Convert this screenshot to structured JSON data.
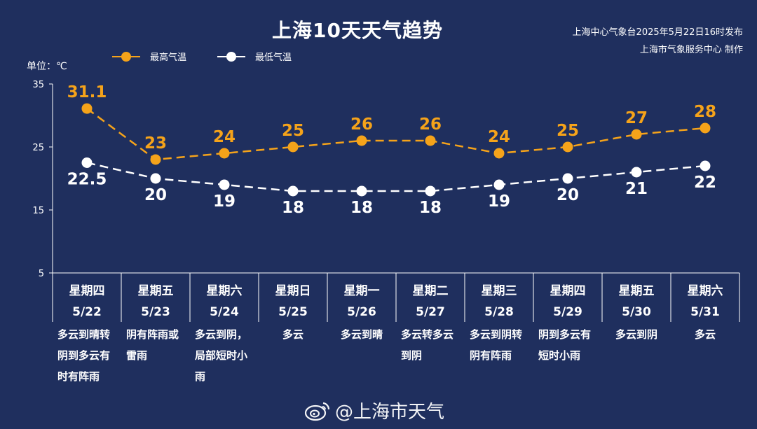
{
  "title": "上海10天天气趋势",
  "issuer": {
    "line1": "上海中心气象台2025年5月22日16时发布",
    "line2": "上海市气象服务中心 制作"
  },
  "legend": {
    "high_label": "最高气温",
    "low_label": "最低气温"
  },
  "unit_label": "单位：℃",
  "watermark": "@上海市天气",
  "colors": {
    "background": "#1f2f5e",
    "high": "#f5a31a",
    "low": "#ffffff"
  },
  "chart_data": {
    "type": "line",
    "ylim": [
      5,
      35
    ],
    "yticks": [
      5,
      15,
      25,
      35
    ],
    "grid": false,
    "legend_position": "top-left",
    "categories": [
      "5/22",
      "5/23",
      "5/24",
      "5/25",
      "5/26",
      "5/27",
      "5/28",
      "5/29",
      "5/30",
      "5/31"
    ],
    "weekdays": [
      "星期四",
      "星期五",
      "星期六",
      "星期日",
      "星期一",
      "星期二",
      "星期三",
      "星期四",
      "星期五",
      "星期六"
    ],
    "weather": [
      [
        "多云到晴转",
        "阴到多云有",
        "时有阵雨"
      ],
      [
        "阴有阵雨或",
        "雷雨"
      ],
      [
        "多云到阴，",
        "局部短时小",
        "雨"
      ],
      [
        "多云"
      ],
      [
        "多云到晴"
      ],
      [
        "多云转多云",
        "到阴"
      ],
      [
        "多云到阴转",
        "阴有阵雨"
      ],
      [
        "阴到多云有",
        "短时小雨"
      ],
      [
        "多云到阴"
      ],
      [
        "多云"
      ]
    ],
    "series": [
      {
        "name": "最高气温",
        "values": [
          31.1,
          23,
          24,
          25,
          26,
          26,
          24,
          25,
          27,
          28
        ],
        "labels": [
          "31.1",
          "23",
          "24",
          "25",
          "26",
          "26",
          "24",
          "25",
          "27",
          "28"
        ]
      },
      {
        "name": "最低气温",
        "values": [
          22.5,
          20,
          19,
          18,
          18,
          18,
          19,
          20,
          21,
          22
        ],
        "labels": [
          "22.5",
          "20",
          "19",
          "18",
          "18",
          "18",
          "19",
          "20",
          "21",
          "22"
        ]
      }
    ]
  }
}
